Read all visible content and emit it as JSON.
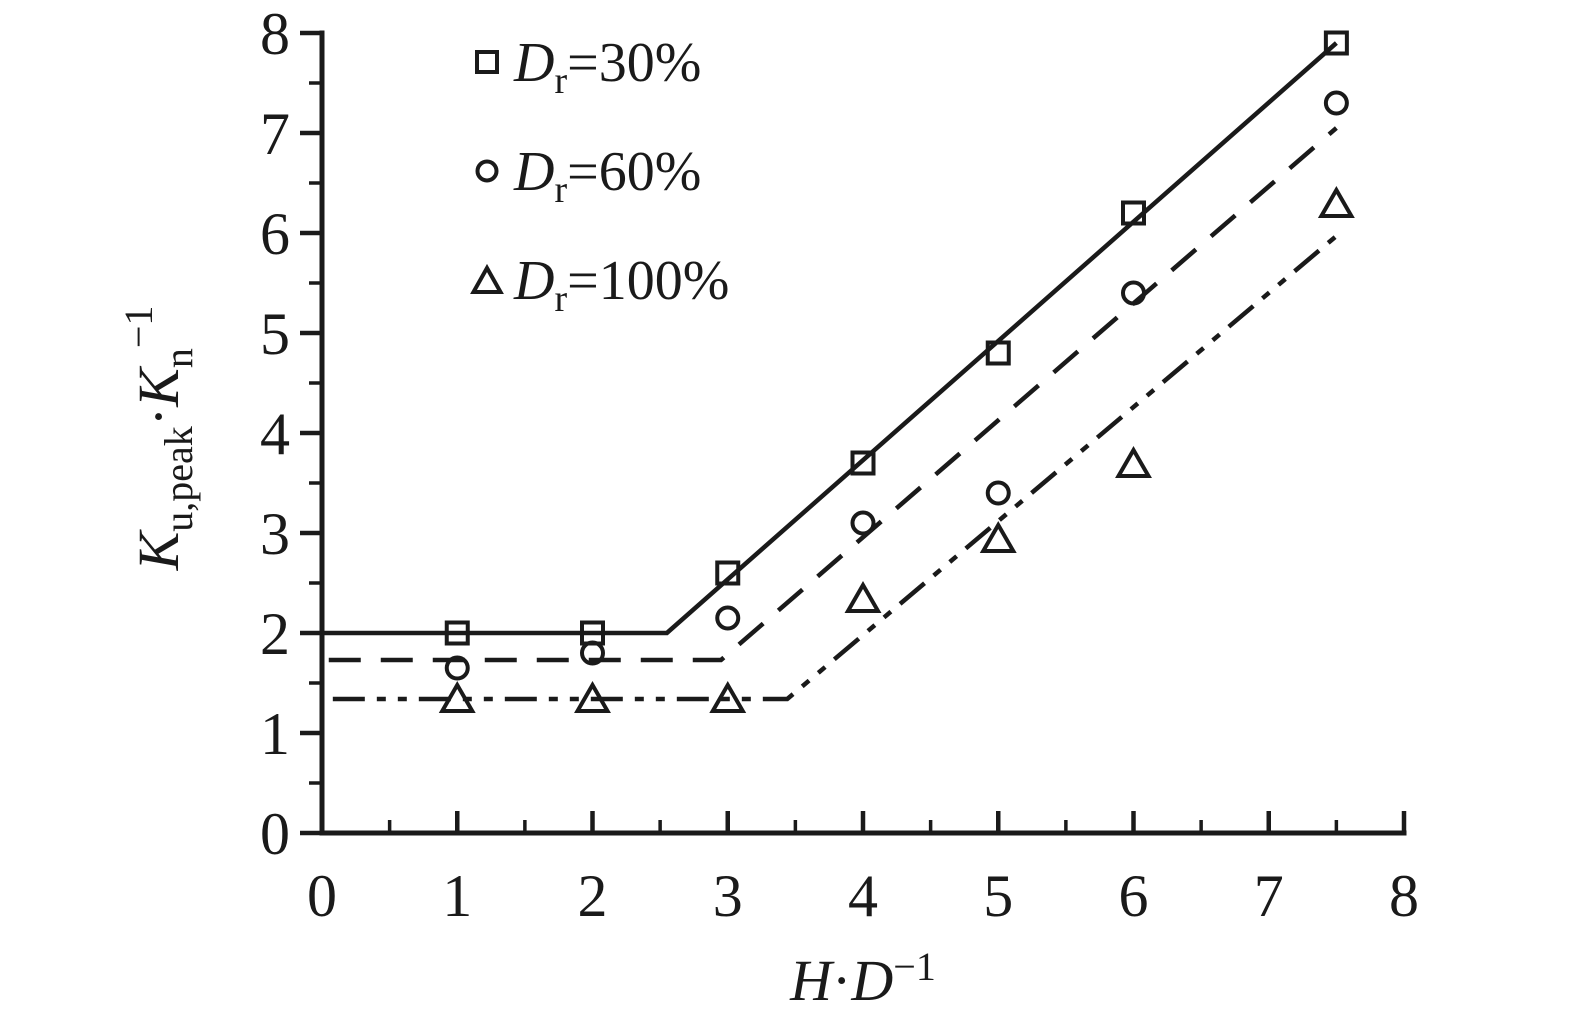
{
  "figure": {
    "background": "#ffffff",
    "ink_color": "#1a1a1a"
  },
  "chart_data": {
    "type": "scatter",
    "title": "",
    "xlabel": {
      "pre_italic": "H",
      "dot": "·",
      "mid_italic": "D",
      "sup": "−1",
      "plain": "H·D−1"
    },
    "ylabel": {
      "k1_italic": "K",
      "k1_sub": "u,peak",
      "dot": "·",
      "k2_italic": "K",
      "k2_sub": "n",
      "k2_sup": "−1",
      "plain": "Ku,peak·Kn−1"
    },
    "xlim": [
      0,
      8
    ],
    "ylim": [
      0,
      8
    ],
    "x_ticks": [
      0,
      1,
      2,
      3,
      4,
      5,
      6,
      7,
      8
    ],
    "y_ticks": [
      0,
      1,
      2,
      3,
      4,
      5,
      6,
      7,
      8
    ],
    "minor_tick_step": 0.5,
    "grid": false,
    "legend_position": "upper-left-inside",
    "series": [
      {
        "name": "Dr=30%",
        "label": {
          "pre_italic": "D",
          "sub": "r",
          "post": "=30%"
        },
        "marker": "square",
        "line_style": "solid",
        "points": [
          [
            1,
            2.0
          ],
          [
            2,
            2.0
          ],
          [
            3,
            2.6
          ],
          [
            4,
            3.7
          ],
          [
            5,
            4.8
          ],
          [
            6,
            6.2
          ],
          [
            7.5,
            7.9
          ]
        ],
        "trend_line": [
          [
            0,
            2.0
          ],
          [
            2.55,
            2.0
          ],
          [
            7.5,
            7.9
          ]
        ]
      },
      {
        "name": "Dr=60%",
        "label": {
          "pre_italic": "D",
          "sub": "r",
          "post": "=60%"
        },
        "marker": "circle",
        "line_style": "dashed",
        "points": [
          [
            1,
            1.65
          ],
          [
            2,
            1.8
          ],
          [
            3,
            2.15
          ],
          [
            4,
            3.1
          ],
          [
            5,
            3.4
          ],
          [
            6,
            5.4
          ],
          [
            7.5,
            7.3
          ]
        ],
        "trend_line": [
          [
            0.05,
            1.73
          ],
          [
            2.95,
            1.73
          ],
          [
            7.5,
            7.05
          ]
        ]
      },
      {
        "name": "Dr=100%",
        "label": {
          "pre_italic": "D",
          "sub": "r",
          "post": "=100%"
        },
        "marker": "triangle",
        "line_style": "dashdotdot",
        "points": [
          [
            1,
            1.35
          ],
          [
            2,
            1.35
          ],
          [
            3,
            1.35
          ],
          [
            4,
            2.35
          ],
          [
            5,
            2.95
          ],
          [
            6,
            3.7
          ],
          [
            7.5,
            6.3
          ]
        ],
        "trend_line": [
          [
            0.08,
            1.34
          ],
          [
            3.44,
            1.34
          ],
          [
            7.5,
            5.97
          ]
        ]
      }
    ]
  }
}
